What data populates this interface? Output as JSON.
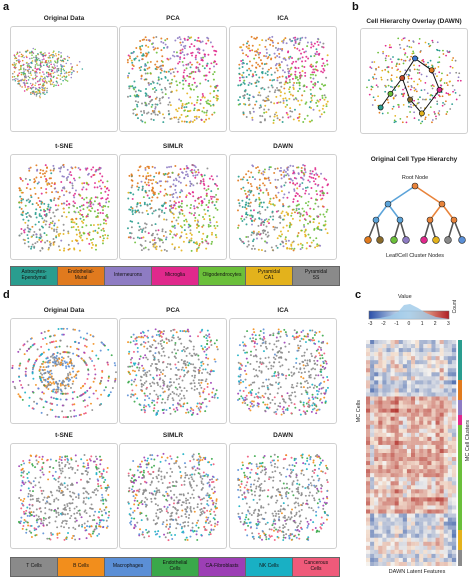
{
  "panel_a": {
    "label": "a",
    "titles": [
      "Original Data",
      "PCA",
      "ICA",
      "t-SNE",
      "SIMLR",
      "DAWN"
    ],
    "legend": [
      {
        "label": "Astrocytes-\nEpendymal",
        "color": "#2a9d8f"
      },
      {
        "label": "Endothelial-\nMural",
        "color": "#e07a1e"
      },
      {
        "label": "Interneurons",
        "color": "#8e7cc3"
      },
      {
        "label": "Microglia",
        "color": "#e0298c"
      },
      {
        "label": "Oligodendrocytes",
        "color": "#6bbf3a"
      },
      {
        "label": "Pyramidal\nCA1",
        "color": "#e3b21c"
      },
      {
        "label": "Pyramidal\nSS",
        "color": "#8a8a8a"
      }
    ]
  },
  "panel_b": {
    "label": "b",
    "overlay_title": "Cell Hierarchy Overlay (DAWN)",
    "hierarchy_title": "Original Cell Type Hierarchy",
    "root_label": "Root Node",
    "leaf_label": "Leaf/Cell Cluster Nodes"
  },
  "panel_c": {
    "label": "c",
    "colorbar_title": "Value",
    "count_label": "Count",
    "ticks": [
      "-3",
      "-2",
      "-1",
      "0",
      "1",
      "2",
      "3"
    ],
    "ylabel": "MC Cells",
    "xlabel": "DAWN Latent Features",
    "right_label": "MC Cell Clusters"
  },
  "panel_d": {
    "label": "d",
    "titles": [
      "Original Data",
      "PCA",
      "ICA",
      "t-SNE",
      "SIMLR",
      "DAWN"
    ],
    "legend": [
      {
        "label": "T Cells",
        "color": "#8a8a8a"
      },
      {
        "label": "B Cells",
        "color": "#f28e1c"
      },
      {
        "label": "Macrophages",
        "color": "#5b8fd6"
      },
      {
        "label": "Endothelial\nCells",
        "color": "#3aa84a"
      },
      {
        "label": "CA-Fibroblasts",
        "color": "#9c3fb5"
      },
      {
        "label": "NK Cells",
        "color": "#19b0c4"
      },
      {
        "label": "Cancerous\nCells",
        "color": "#ef5a7a"
      }
    ]
  }
}
